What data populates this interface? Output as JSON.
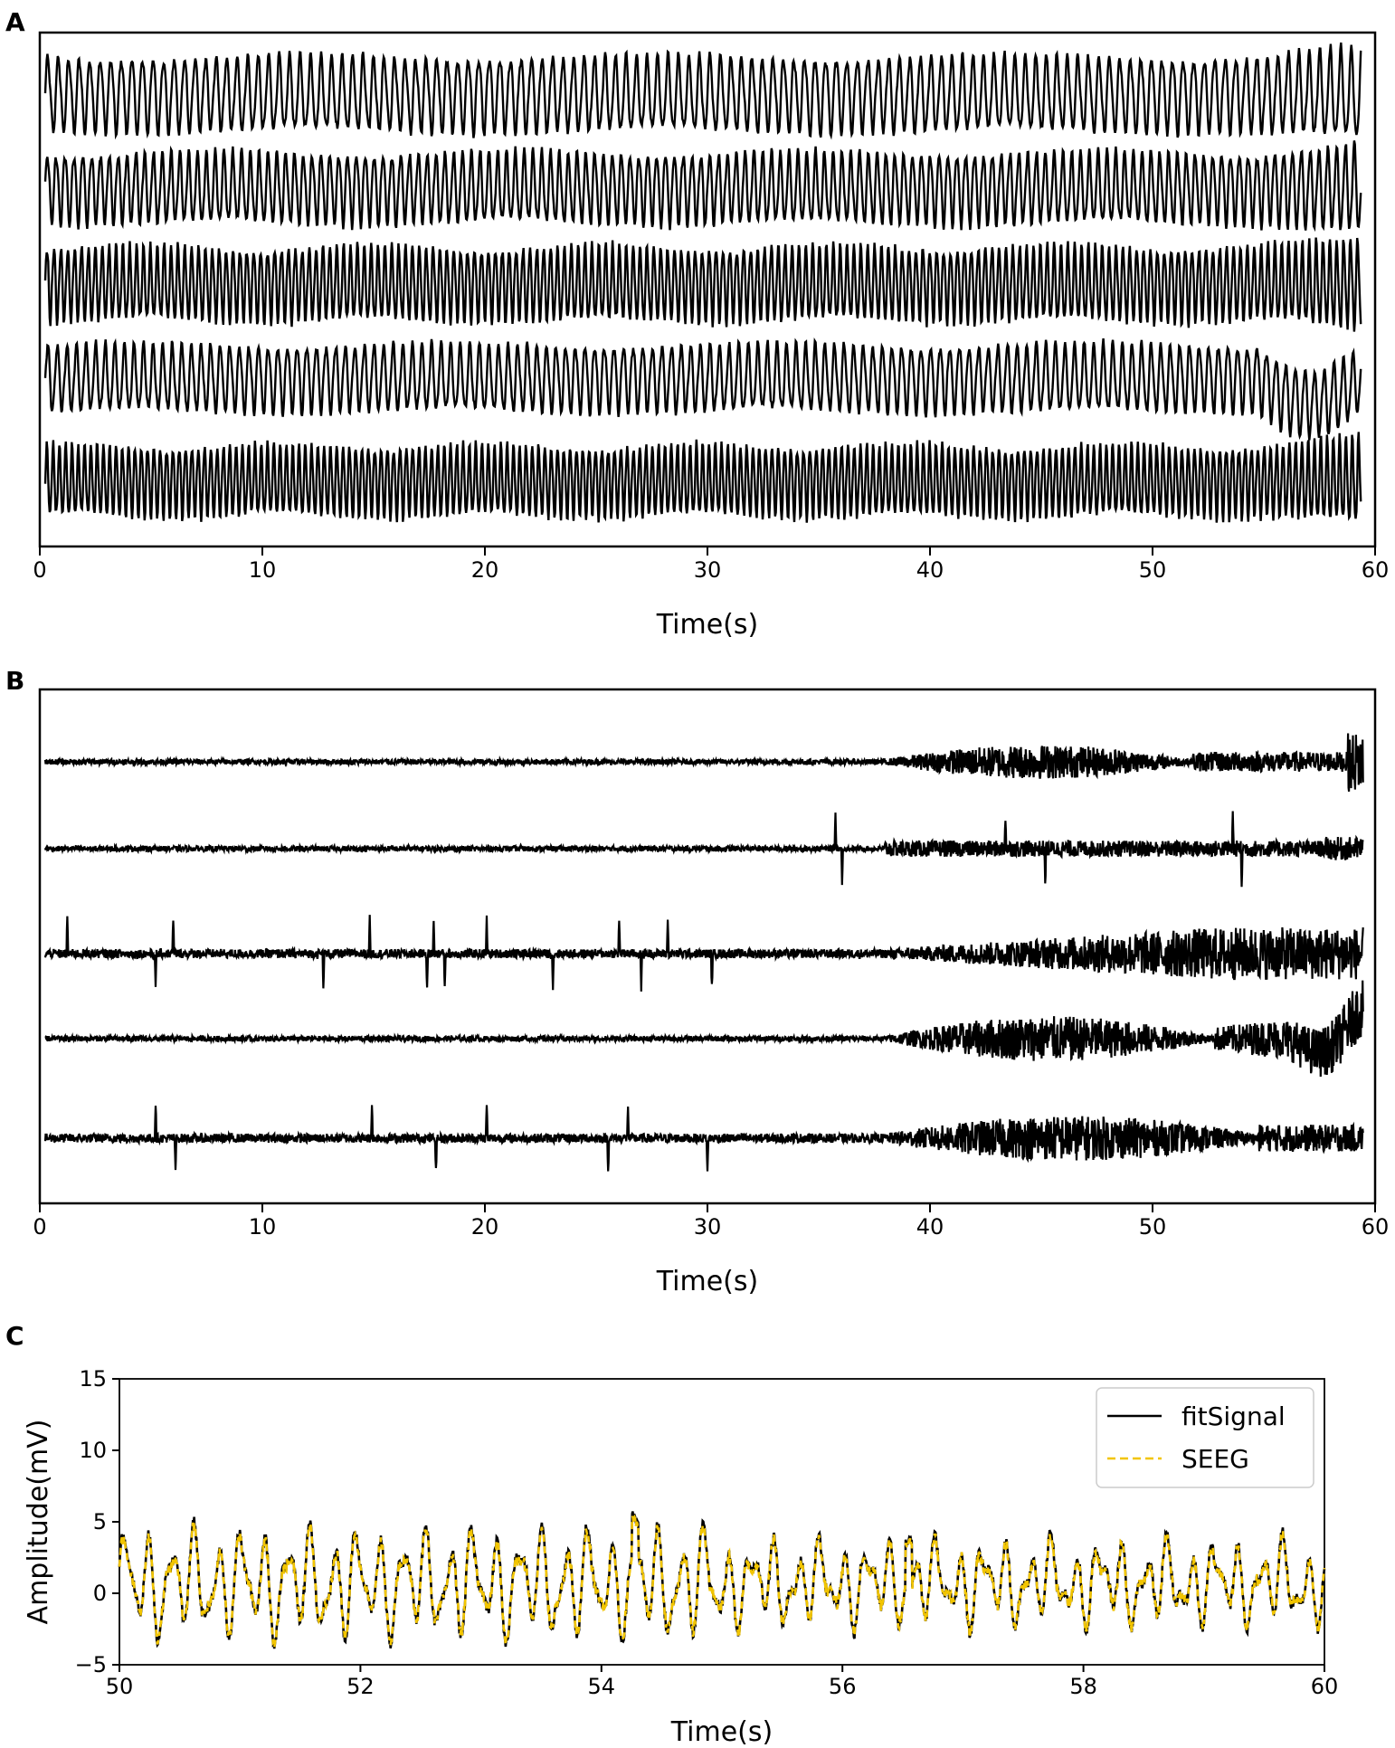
{
  "chart_data": [
    {
      "panel": "A",
      "type": "line",
      "xlabel": "Time(s)",
      "xlim": [
        0,
        60
      ],
      "xticks": [
        "0",
        "10",
        "20",
        "30",
        "40",
        "50",
        "60"
      ],
      "channels": 5,
      "description_traces": [
        {
          "pattern": "regular oscillation",
          "freq_hz": 2.1,
          "rel_amp": 0.82,
          "late_change": "slight amplitude increase near 58 s, drop at end"
        },
        {
          "pattern": "regular oscillation",
          "freq_hz": 2.5,
          "rel_amp": 0.78,
          "late_change": "amplitude increase near 58 s"
        },
        {
          "pattern": "dense oscillation",
          "freq_hz": 3.2,
          "rel_amp": 0.8,
          "late_change": "amplitude increase near 59 s"
        },
        {
          "pattern": "regular oscillation",
          "freq_hz": 2.3,
          "rel_amp": 0.75,
          "late_change": "slow dip and rise after 55 s"
        },
        {
          "pattern": "dense oscillation",
          "freq_hz": 3.5,
          "rel_amp": 0.75,
          "late_change": "amplitude increase near 59 s"
        }
      ]
    },
    {
      "panel": "B",
      "type": "line",
      "xlabel": "Time(s)",
      "xlim": [
        0,
        60
      ],
      "xticks": [
        "0",
        "10",
        "20",
        "30",
        "40",
        "50",
        "60"
      ],
      "channels": 5,
      "spikes": [
        [],
        [
          35.8,
          36.1,
          43.5,
          45.3,
          53.8,
          54.2
        ],
        [
          1.0,
          5.0,
          5.8,
          12.6,
          14.7,
          17.3,
          17.6,
          18.1,
          20.0,
          23.0,
          26.0,
          27.0,
          28.2,
          30.2
        ],
        [],
        [
          5.0,
          5.9,
          14.8,
          17.7,
          20.0,
          25.5,
          26.4,
          30.0
        ]
      ],
      "activity_onset_s": [
        38,
        38,
        38,
        38,
        38
      ]
    },
    {
      "panel": "C",
      "type": "line",
      "xlabel": "Time(s)",
      "ylabel": "Amplitude(mV)",
      "xlim": [
        50,
        60
      ],
      "ylim": [
        -5,
        15
      ],
      "xticks": [
        "50",
        "52",
        "54",
        "56",
        "58",
        "60"
      ],
      "yticks": [
        "−5",
        "0",
        "5",
        "10",
        "15"
      ],
      "legend_position": "top-right",
      "series": [
        {
          "name": "fitSignal",
          "color": "#000000",
          "style": "solid",
          "range": [
            -4.2,
            6.5
          ]
        },
        {
          "name": "SEEG",
          "color": "#f2c500",
          "style": "dashed",
          "range": [
            -4.0,
            6.3
          ]
        }
      ]
    }
  ],
  "panels": {
    "a": {
      "letter": "A",
      "xlabel": "Time(s)"
    },
    "b": {
      "letter": "B",
      "xlabel": "Time(s)"
    },
    "c": {
      "letter": "C",
      "xlabel": "Time(s)",
      "ylabel": "Amplitude(mV)"
    }
  },
  "legend": {
    "fit": "fitSignal",
    "seeg": "SEEG"
  },
  "colors": {
    "trace": "#000000",
    "seeg": "#f2c500",
    "legend_frame": "#cccccc"
  }
}
